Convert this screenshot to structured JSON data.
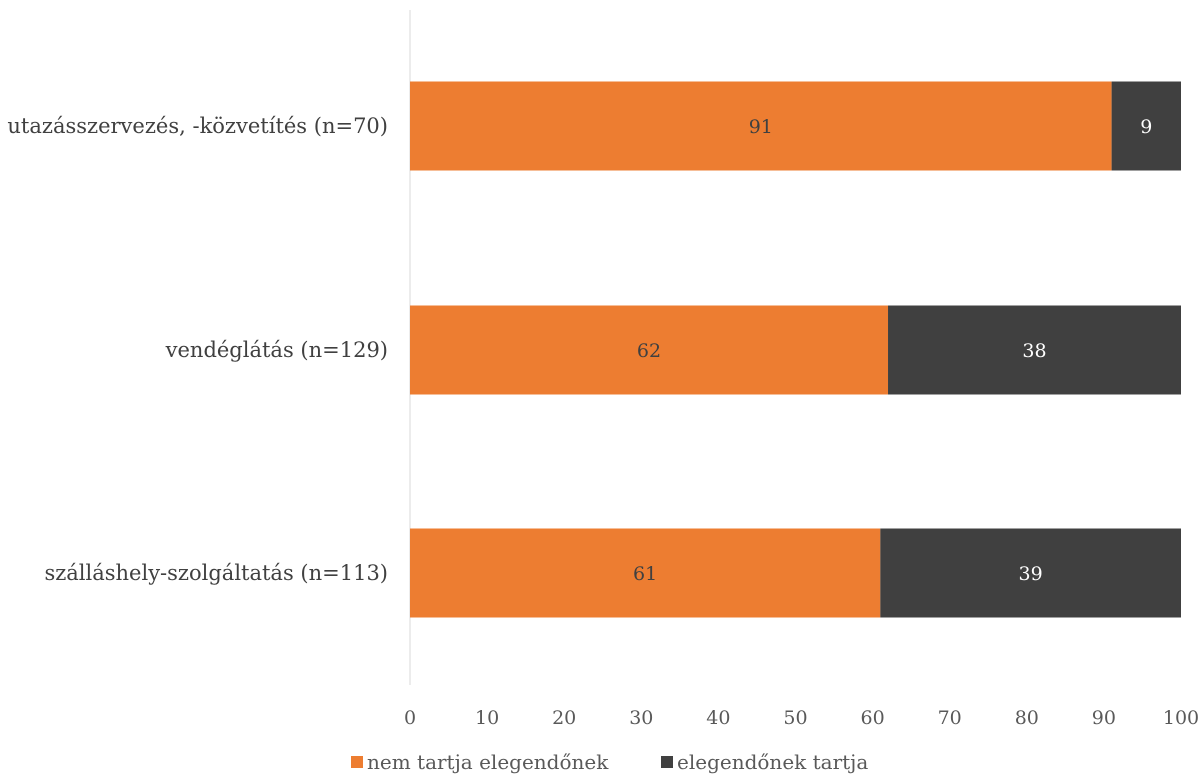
{
  "chart_data": {
    "type": "bar",
    "orientation": "horizontal",
    "stacked": true,
    "categories": [
      "utazásszervezés, -közvetítés (n=70)",
      "vendéglátás (n=129)",
      "szálláshely-szolgáltatás (n=113)"
    ],
    "series": [
      {
        "name": "nem tartja elegendőnek",
        "values": [
          91,
          62,
          61
        ],
        "color": "#ED7D31",
        "label_color": "#404040"
      },
      {
        "name": "elegendőnek tartja",
        "values": [
          9,
          38,
          39
        ],
        "color": "#404040",
        "label_color": "#ffffff"
      }
    ],
    "xlim": [
      0,
      100
    ],
    "xticks": [
      "0",
      "10",
      "20",
      "30",
      "40",
      "50",
      "60",
      "70",
      "80",
      "90",
      "100"
    ],
    "grid": false,
    "legend_position": "bottom"
  }
}
